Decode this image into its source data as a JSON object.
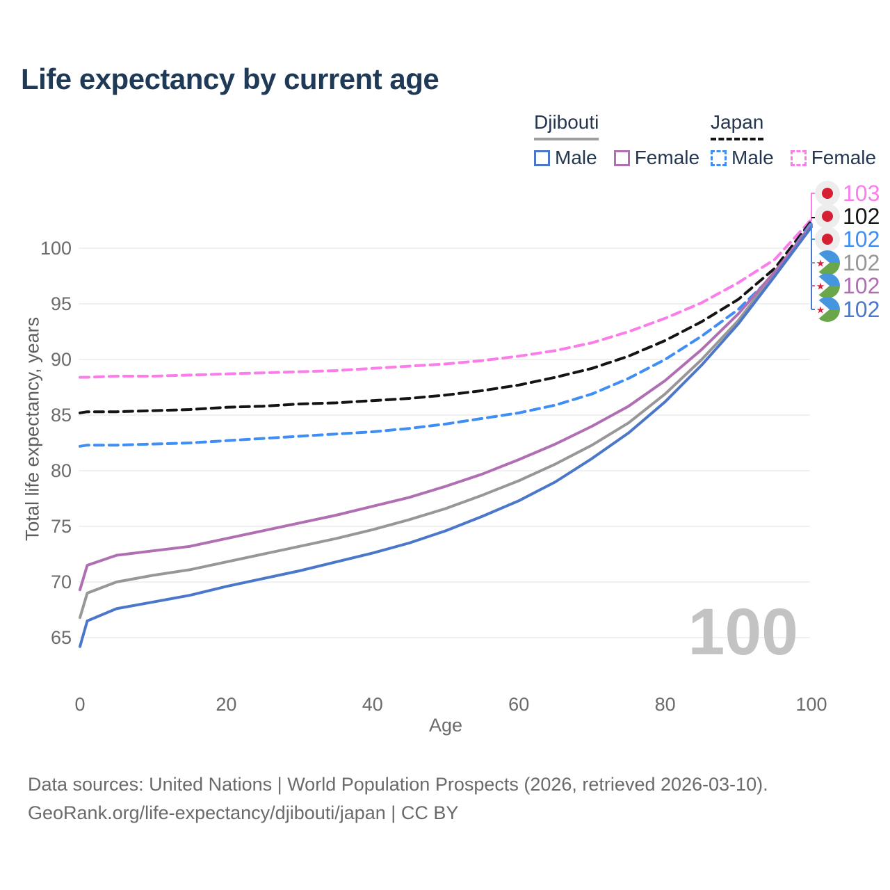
{
  "title": "Life expectancy by current age",
  "legend": {
    "groups": [
      {
        "country": "Djibouti",
        "line_style": "solid",
        "underline_color": "#9e9e9e",
        "items": [
          {
            "label": "Male",
            "color": "#4a77c9"
          },
          {
            "label": "Female",
            "color": "#b06fb3"
          }
        ]
      },
      {
        "country": "Japan",
        "line_style": "dashed",
        "underline_color": "#141414",
        "items": [
          {
            "label": "Male",
            "color": "#3f8ef5"
          },
          {
            "label": "Female",
            "color": "#fb7de9"
          }
        ]
      }
    ]
  },
  "watermark_age": "100",
  "footer": {
    "line1": "Data sources: United Nations | World Population Prospects (2026, retrieved 2026-03-10).",
    "line2": "GeoRank.org/life-expectancy/djibouti/japan | CC BY"
  },
  "chart_data": {
    "type": "line",
    "title": "Life expectancy by current age",
    "xlabel": "Age",
    "ylabel": "Total life expectancy, years",
    "xlim": [
      0,
      100
    ],
    "ylim": [
      63,
      103
    ],
    "x_ticks": [
      0,
      20,
      40,
      60,
      80,
      100
    ],
    "y_ticks": [
      65,
      70,
      75,
      80,
      85,
      90,
      95,
      100
    ],
    "grid": "horizontal-only",
    "legend_position": "top-right",
    "x": [
      0,
      1,
      5,
      10,
      15,
      20,
      25,
      30,
      35,
      40,
      45,
      50,
      55,
      60,
      65,
      70,
      75,
      80,
      85,
      90,
      95,
      100
    ],
    "series": [
      {
        "name": "Japan Female",
        "flag": "japan",
        "color": "#fb7de9",
        "dashed": true,
        "end_label": "103",
        "values": [
          88.4,
          88.4,
          88.5,
          88.5,
          88.6,
          88.7,
          88.8,
          88.9,
          89.0,
          89.2,
          89.4,
          89.6,
          89.9,
          90.3,
          90.8,
          91.5,
          92.5,
          93.7,
          95.1,
          96.9,
          99.0,
          102.6
        ]
      },
      {
        "name": "Japan Both sexes",
        "flag": "japan",
        "color": "#141414",
        "dashed": true,
        "end_label": "102",
        "values": [
          85.2,
          85.3,
          85.3,
          85.4,
          85.5,
          85.7,
          85.8,
          86.0,
          86.1,
          86.3,
          86.5,
          86.8,
          87.2,
          87.7,
          88.4,
          89.2,
          90.3,
          91.7,
          93.4,
          95.4,
          98.2,
          102.45
        ]
      },
      {
        "name": "Japan Male",
        "flag": "japan",
        "color": "#3f8ef5",
        "dashed": true,
        "end_label": "102",
        "values": [
          82.2,
          82.3,
          82.3,
          82.4,
          82.5,
          82.7,
          82.9,
          83.1,
          83.3,
          83.5,
          83.8,
          84.2,
          84.7,
          85.2,
          85.9,
          86.9,
          88.3,
          90.0,
          92.1,
          94.5,
          97.7,
          102.3
        ]
      },
      {
        "name": "Djibouti Both sexes",
        "flag": "djibouti",
        "color": "#979797",
        "dashed": false,
        "end_label": "102",
        "values": [
          66.8,
          69.0,
          70.0,
          70.6,
          71.1,
          71.8,
          72.5,
          73.2,
          73.9,
          74.7,
          75.6,
          76.6,
          77.8,
          79.1,
          80.6,
          82.3,
          84.3,
          86.9,
          90.0,
          93.5,
          97.8,
          102.15
        ]
      },
      {
        "name": "Djibouti Female",
        "flag": "djibouti",
        "color": "#b06fb3",
        "dashed": false,
        "end_label": "102",
        "values": [
          69.3,
          71.5,
          72.4,
          72.8,
          73.2,
          73.9,
          74.6,
          75.3,
          76.0,
          76.8,
          77.6,
          78.6,
          79.7,
          81.0,
          82.4,
          84.0,
          85.8,
          88.1,
          90.9,
          94.1,
          97.9,
          102.05
        ]
      },
      {
        "name": "Djibouti Male",
        "flag": "djibouti",
        "color": "#4a77c9",
        "dashed": false,
        "end_label": "102",
        "values": [
          64.2,
          66.5,
          67.6,
          68.2,
          68.8,
          69.6,
          70.3,
          71.0,
          71.8,
          72.6,
          73.5,
          74.6,
          75.9,
          77.3,
          79.0,
          81.1,
          83.4,
          86.2,
          89.5,
          93.2,
          97.5,
          101.9
        ]
      }
    ],
    "flag_colors": {
      "japan_bg": "#ededed",
      "japan_disc": "#d61f33",
      "djibouti_blue": "#4596df",
      "djibouti_green": "#69a74a",
      "djibouti_star": "#d7263d"
    }
  }
}
